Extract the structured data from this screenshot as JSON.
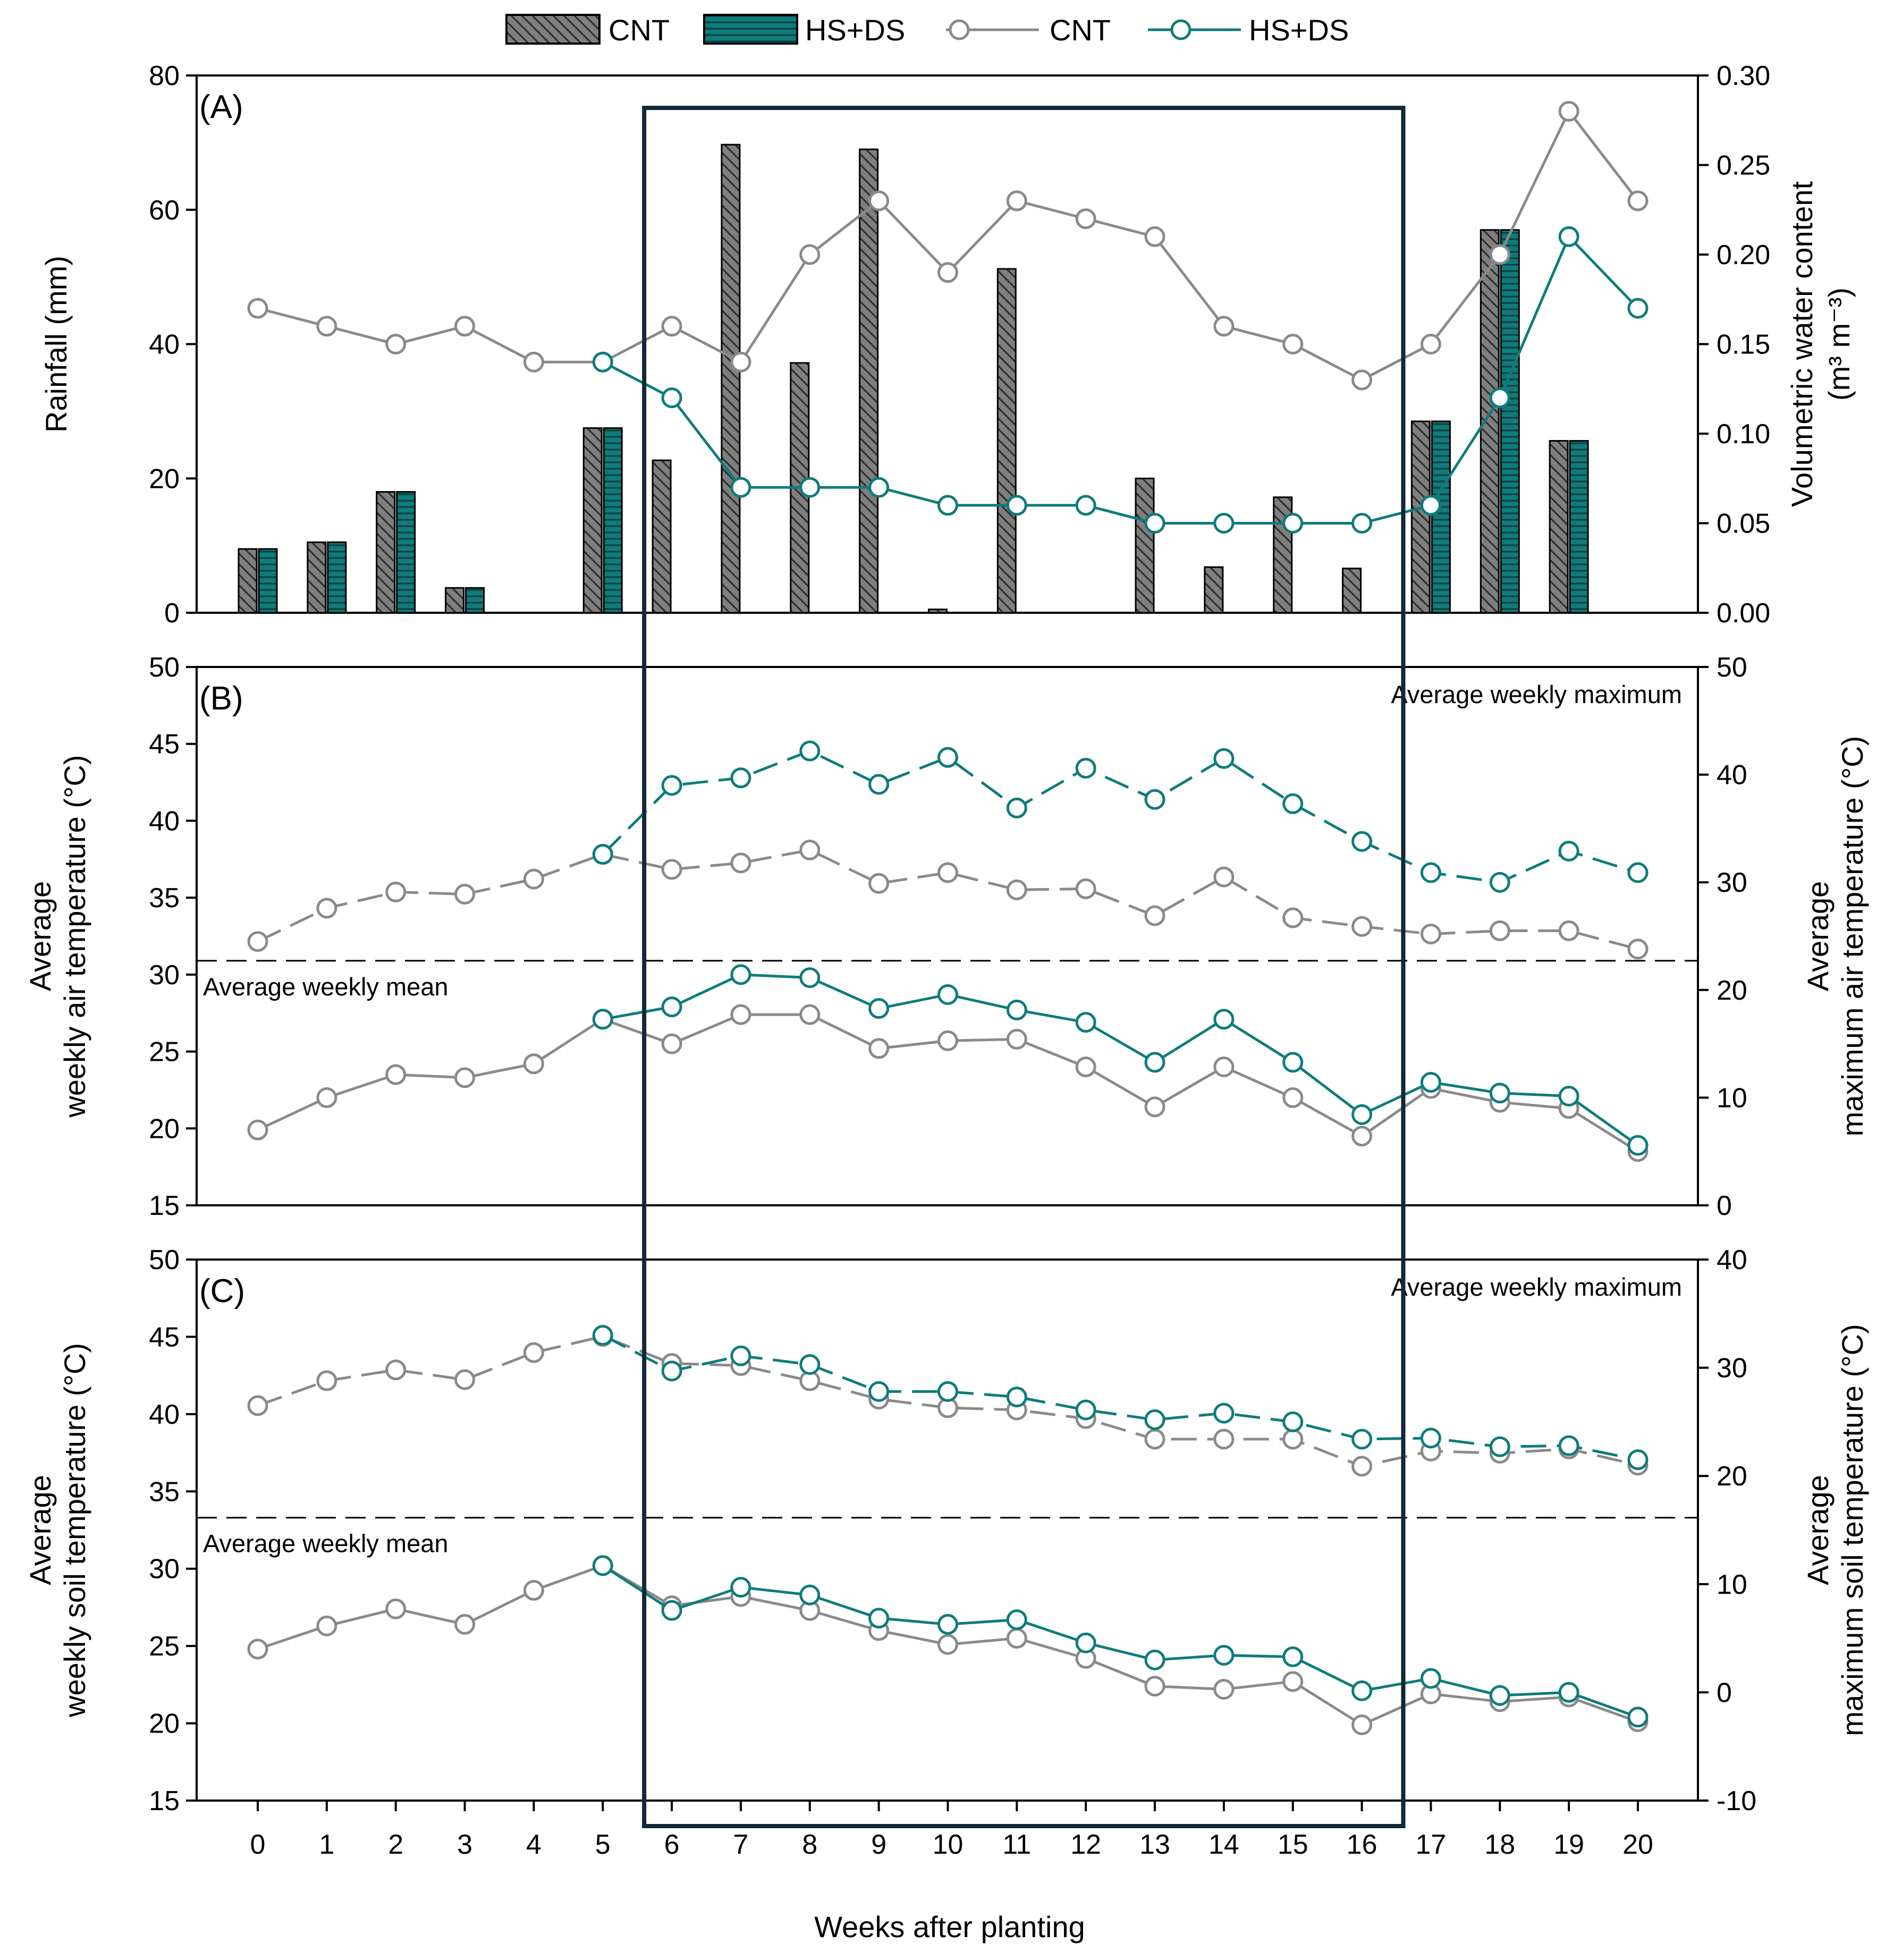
{
  "colors": {
    "cnt_bar": "#7f7f7f",
    "hs_bar": "#0e7c7b",
    "cnt_line": "#8a8a8a",
    "hs_line": "#0e7c7b",
    "highlight_box": "#13273a",
    "axis": "#000000"
  },
  "legend": {
    "bar_cnt": "CNT",
    "bar_hs": "HS+DS",
    "line_cnt": "CNT",
    "line_hs": "HS+DS"
  },
  "xaxis": {
    "label": "Weeks after planting",
    "ticks": [
      "0",
      "1",
      "2",
      "3",
      "4",
      "5",
      "6",
      "7",
      "8",
      "9",
      "10",
      "11",
      "12",
      "13",
      "14",
      "15",
      "16",
      "17",
      "18",
      "19",
      "20"
    ]
  },
  "highlight": {
    "from_week": 5.6,
    "to_week": 16.6
  },
  "chart_data": [
    {
      "panel": "A",
      "panel_label": "(A)",
      "type": "bar+line",
      "ylabel_left": "Rainfall (mm)",
      "ylabel_right_line1": "Volumetric water content",
      "ylabel_right_line2": "(m³ m⁻³)",
      "ylim_left": [
        0,
        80
      ],
      "yticks_left": [
        "0",
        "20",
        "40",
        "60",
        "80"
      ],
      "ylim_right": [
        0,
        0.3
      ],
      "yticks_right": [
        "0.00",
        "0.05",
        "0.10",
        "0.15",
        "0.20",
        "0.25",
        "0.30"
      ],
      "weeks": [
        0,
        1,
        2,
        3,
        4,
        5,
        6,
        7,
        8,
        9,
        10,
        11,
        12,
        13,
        14,
        15,
        16,
        17,
        18,
        19,
        20
      ],
      "bars": [
        {
          "name": "CNT",
          "values": [
            9.5,
            10.5,
            18,
            3.7,
            0,
            27.5,
            22.7,
            69.7,
            37.2,
            69,
            0.5,
            51.2,
            0,
            20,
            6.8,
            17.2,
            6.6,
            28.5,
            57,
            25.6,
            0
          ]
        },
        {
          "name": "HS+DS",
          "values": [
            9.5,
            10.5,
            18,
            3.7,
            0,
            27.5,
            null,
            null,
            null,
            null,
            null,
            null,
            null,
            null,
            null,
            null,
            null,
            28.5,
            57,
            25.6,
            null
          ]
        }
      ],
      "series": [
        {
          "name": "CNT",
          "axis": "right",
          "style": "solid",
          "x": [
            0,
            1,
            2,
            3,
            4,
            5,
            6,
            7,
            8,
            9,
            10,
            11,
            12,
            13,
            14,
            15,
            16,
            17,
            18,
            19,
            20
          ],
          "values": [
            0.17,
            0.16,
            0.15,
            0.16,
            0.14,
            0.14,
            0.16,
            0.14,
            0.2,
            0.23,
            0.19,
            0.23,
            0.22,
            0.21,
            0.16,
            0.15,
            0.13,
            0.15,
            0.2,
            0.28,
            0.23
          ]
        },
        {
          "name": "HS+DS",
          "axis": "right",
          "style": "solid",
          "x": [
            5,
            6,
            7,
            8,
            9,
            10,
            11,
            12,
            13,
            14,
            15,
            16,
            17,
            18,
            19,
            20
          ],
          "values": [
            0.14,
            0.12,
            0.07,
            0.07,
            0.07,
            0.06,
            0.06,
            0.06,
            0.05,
            0.05,
            0.05,
            0.05,
            0.06,
            0.12,
            0.21,
            0.17
          ]
        }
      ]
    },
    {
      "panel": "B",
      "panel_label": "(B)",
      "type": "line",
      "ylabel_left_line1": "Average",
      "ylabel_left_line2": "weekly air temperature (°C)",
      "ylabel_right_line1": "Average",
      "ylabel_right_line2": "maximum air temperature (°C)",
      "ylim_left": [
        15,
        50
      ],
      "yticks_left": [
        "15",
        "20",
        "25",
        "30",
        "35",
        "40",
        "45",
        "50"
      ],
      "ylim_right": [
        0,
        50
      ],
      "yticks_right": [
        "0",
        "10",
        "20",
        "30",
        "40",
        "50"
      ],
      "annotation_max": "Average weekly maximum",
      "annotation_mean": "Average weekly mean",
      "divider_value_left": 30.9,
      "series": [
        {
          "name": "CNT maximum",
          "axis": "right",
          "style": "dashed",
          "x": [
            0,
            1,
            2,
            3,
            4,
            5,
            6,
            7,
            8,
            9,
            10,
            11,
            12,
            13,
            14,
            15,
            16,
            17,
            18,
            19,
            20
          ],
          "values": [
            24.5,
            27.6,
            29.1,
            28.9,
            30.3,
            32.6,
            31.2,
            31.8,
            33.0,
            29.9,
            30.9,
            29.3,
            29.4,
            26.9,
            30.5,
            26.7,
            25.9,
            25.2,
            25.5,
            25.5,
            23.8
          ]
        },
        {
          "name": "HS+DS maximum",
          "axis": "right",
          "style": "dashed",
          "x": [
            5,
            6,
            7,
            8,
            9,
            10,
            11,
            12,
            13,
            14,
            15,
            16,
            17,
            18,
            19,
            20
          ],
          "values": [
            32.6,
            39.0,
            39.7,
            42.2,
            39.1,
            41.6,
            36.9,
            40.6,
            37.7,
            41.5,
            37.3,
            33.8,
            30.9,
            30.0,
            32.9,
            30.9
          ]
        },
        {
          "name": "CNT mean",
          "axis": "left",
          "style": "solid",
          "x": [
            0,
            1,
            2,
            3,
            4,
            5,
            6,
            7,
            8,
            9,
            10,
            11,
            12,
            13,
            14,
            15,
            16,
            17,
            18,
            19,
            20
          ],
          "values": [
            19.9,
            22.0,
            23.5,
            23.3,
            24.2,
            27.1,
            25.5,
            27.4,
            27.4,
            25.2,
            25.7,
            25.8,
            24.0,
            21.4,
            24.0,
            22.0,
            19.5,
            22.6,
            21.7,
            21.3,
            18.5
          ]
        },
        {
          "name": "HS+DS mean",
          "axis": "left",
          "style": "solid",
          "x": [
            5,
            6,
            7,
            8,
            9,
            10,
            11,
            12,
            13,
            14,
            15,
            16,
            17,
            18,
            19,
            20
          ],
          "values": [
            27.1,
            27.9,
            30.0,
            29.8,
            27.8,
            28.7,
            27.7,
            26.9,
            24.3,
            27.1,
            24.3,
            20.9,
            23.0,
            22.3,
            22.1,
            18.9
          ]
        }
      ]
    },
    {
      "panel": "C",
      "panel_label": "(C)",
      "type": "line",
      "ylabel_left_line1": "Average",
      "ylabel_left_line2": "weekly soil temperature (°C)",
      "ylabel_right_line1": "Average",
      "ylabel_right_line2": "maximum soil temperature (°C)",
      "ylim_left": [
        15,
        50
      ],
      "yticks_left": [
        "15",
        "20",
        "25",
        "30",
        "35",
        "40",
        "45",
        "50"
      ],
      "ylim_right": [
        -10,
        40
      ],
      "yticks_right": [
        "-10",
        "0",
        "10",
        "20",
        "30",
        "40"
      ],
      "annotation_max": "Average weekly maximum",
      "annotation_mean": "Average weekly mean",
      "divider_value_left": 33.3,
      "series": [
        {
          "name": "CNT maximum",
          "axis": "right",
          "style": "dashed",
          "x": [
            0,
            1,
            2,
            3,
            4,
            5,
            6,
            7,
            8,
            9,
            10,
            11,
            12,
            13,
            14,
            15,
            16,
            17,
            18,
            19,
            20
          ],
          "values": [
            26.5,
            28.8,
            29.8,
            28.9,
            31.4,
            32.9,
            30.4,
            30.2,
            28.8,
            27.1,
            26.3,
            26.1,
            25.3,
            23.4,
            23.4,
            23.4,
            20.9,
            22.3,
            22.1,
            22.5,
            21.0
          ]
        },
        {
          "name": "HS+DS maximum",
          "axis": "right",
          "style": "dashed",
          "x": [
            5,
            6,
            7,
            8,
            9,
            10,
            11,
            12,
            13,
            14,
            15,
            16,
            17,
            18,
            19,
            20
          ],
          "values": [
            33.0,
            29.7,
            31.1,
            30.3,
            27.8,
            27.8,
            27.3,
            26.1,
            25.2,
            25.8,
            25.0,
            23.4,
            23.5,
            22.7,
            22.8,
            21.5
          ]
        },
        {
          "name": "CNT mean",
          "axis": "left",
          "style": "solid",
          "x": [
            0,
            1,
            2,
            3,
            4,
            5,
            6,
            7,
            8,
            9,
            10,
            11,
            12,
            13,
            14,
            15,
            16,
            17,
            18,
            19,
            20
          ],
          "values": [
            24.8,
            26.3,
            27.4,
            26.4,
            28.6,
            30.2,
            27.6,
            28.2,
            27.3,
            26.0,
            25.1,
            25.5,
            24.2,
            22.4,
            22.2,
            22.7,
            19.9,
            21.9,
            21.4,
            21.7,
            20.1
          ]
        },
        {
          "name": "HS+DS mean",
          "axis": "left",
          "style": "solid",
          "x": [
            5,
            6,
            7,
            8,
            9,
            10,
            11,
            12,
            13,
            14,
            15,
            16,
            17,
            18,
            19,
            20
          ],
          "values": [
            30.2,
            27.3,
            28.8,
            28.3,
            26.8,
            26.4,
            26.7,
            25.2,
            24.1,
            24.4,
            24.3,
            22.1,
            22.9,
            21.8,
            22.0,
            20.4
          ]
        }
      ]
    }
  ]
}
